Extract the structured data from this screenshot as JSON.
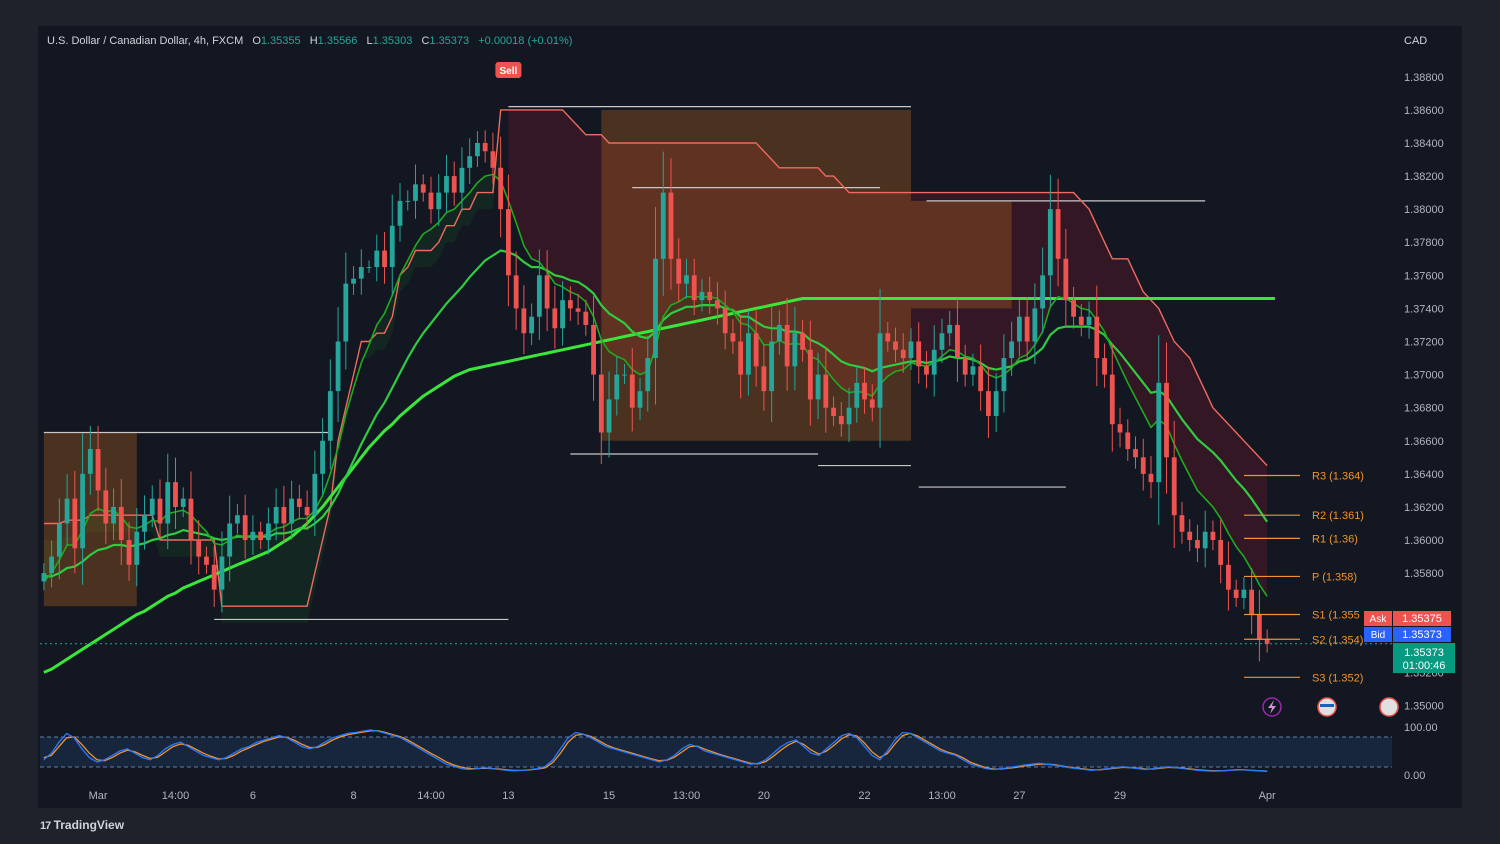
{
  "header": {
    "symbol": "U.S. Dollar / Canadian Dollar, 4h, FXCM",
    "open_label": "O",
    "open": "1.35355",
    "high_label": "H",
    "high": "1.35566",
    "low_label": "L",
    "low": "1.35303",
    "close_label": "C",
    "close": "1.35373",
    "change": "+0.00018 (+0.01%)"
  },
  "branding": {
    "logo_text": "TradingView"
  },
  "chart_data": {
    "type": "candlestick",
    "currency": "CAD",
    "ylim": [
      1.349,
      1.3895
    ],
    "y_ticks": [
      "1.38800",
      "1.38600",
      "1.38400",
      "1.38200",
      "1.38000",
      "1.37800",
      "1.37600",
      "1.37400",
      "1.37200",
      "1.37000",
      "1.36800",
      "1.36600",
      "1.36400",
      "1.36200",
      "1.36000",
      "1.35800",
      "1.35200",
      "1.35000"
    ],
    "x_ticks": [
      {
        "label": "Mar",
        "i": 7
      },
      {
        "label": "14:00",
        "i": 17
      },
      {
        "label": "6",
        "i": 27
      },
      {
        "label": "8",
        "i": 40
      },
      {
        "label": "14:00",
        "i": 50
      },
      {
        "label": "13",
        "i": 60
      },
      {
        "label": "15",
        "i": 73
      },
      {
        "label": "13:00",
        "i": 83
      },
      {
        "label": "20",
        "i": 93
      },
      {
        "label": "22",
        "i": 106
      },
      {
        "label": "13:00",
        "i": 116
      },
      {
        "label": "27",
        "i": 126
      },
      {
        "label": "29",
        "i": 139
      },
      {
        "label": "Apr",
        "i": 158
      }
    ],
    "closes": [
      1.358,
      1.359,
      1.361,
      1.3625,
      1.3595,
      1.364,
      1.3655,
      1.363,
      1.361,
      1.362,
      1.36,
      1.3585,
      1.3605,
      1.3615,
      1.3625,
      1.361,
      1.3635,
      1.362,
      1.3625,
      1.36,
      1.359,
      1.3585,
      1.357,
      1.359,
      1.361,
      1.3615,
      1.36,
      1.3605,
      1.36,
      1.361,
      1.362,
      1.361,
      1.3625,
      1.362,
      1.3615,
      1.364,
      1.366,
      1.369,
      1.372,
      1.3755,
      1.3758,
      1.3765,
      1.3765,
      1.3775,
      1.3765,
      1.379,
      1.3805,
      1.3805,
      1.3815,
      1.381,
      1.38,
      1.381,
      1.382,
      1.381,
      1.3825,
      1.3832,
      1.384,
      1.3835,
      1.3825,
      1.38,
      1.376,
      1.374,
      1.3725,
      1.3735,
      1.376,
      1.374,
      1.3728,
      1.3745,
      1.374,
      1.3738,
      1.373,
      1.37,
      1.3665,
      1.3685,
      1.37,
      1.37,
      1.368,
      1.369,
      1.371,
      1.377,
      1.381,
      1.377,
      1.3755,
      1.376,
      1.3745,
      1.375,
      1.3745,
      1.374,
      1.3725,
      1.372,
      1.37,
      1.3725,
      1.3705,
      1.369,
      1.372,
      1.373,
      1.3705,
      1.3725,
      1.3715,
      1.3685,
      1.37,
      1.368,
      1.3675,
      1.367,
      1.368,
      1.3695,
      1.3685,
      1.368,
      1.3725,
      1.372,
      1.3715,
      1.371,
      1.372,
      1.3705,
      1.37,
      1.3715,
      1.3725,
      1.373,
      1.371,
      1.37,
      1.3705,
      1.369,
      1.3675,
      1.369,
      1.371,
      1.372,
      1.3735,
      1.372,
      1.374,
      1.376,
      1.38,
      1.377,
      1.3745,
      1.3735,
      1.373,
      1.3735,
      1.371,
      1.37,
      1.367,
      1.3665,
      1.3655,
      1.365,
      1.364,
      1.3635,
      1.3695,
      1.365,
      1.3615,
      1.3605,
      1.36,
      1.3595,
      1.3605,
      1.36,
      1.3585,
      1.357,
      1.3565,
      1.357,
      1.3555,
      1.354,
      1.35373
    ],
    "candles_start_open": 1.3575,
    "ema_fast": [
      1.3575,
      1.358,
      1.3588,
      1.3597,
      1.3597,
      1.3606,
      1.3616,
      1.3619,
      1.3617,
      1.3618,
      1.3614,
      1.3608,
      1.3607,
      1.3609,
      1.3612,
      1.3611,
      1.3616,
      1.3617,
      1.3618,
      1.3615,
      1.361,
      1.3605,
      1.3598,
      1.3597,
      1.36,
      1.3603,
      1.3602,
      1.3603,
      1.3602,
      1.3604,
      1.3607,
      1.3608,
      1.3611,
      1.3613,
      1.3613,
      1.3618,
      1.3627,
      1.364,
      1.3656,
      1.3676,
      1.3692,
      1.3707,
      1.3718,
      1.373,
      1.3737,
      1.3748,
      1.376,
      1.3769,
      1.3778,
      1.3785,
      1.3788,
      1.3792,
      1.3798,
      1.38,
      1.3805,
      1.381,
      1.3816,
      1.382,
      1.3821,
      1.3817,
      1.3805,
      1.3792,
      1.3778,
      1.377,
      1.3768,
      1.3762,
      1.3755,
      1.3753,
      1.375,
      1.3748,
      1.3744,
      1.3735,
      1.3721,
      1.3714,
      1.3711,
      1.3709,
      1.3703,
      1.37,
      1.3702,
      1.3716,
      1.3735,
      1.3742,
      1.3744,
      1.3747,
      1.3747,
      1.3747,
      1.3747,
      1.3746,
      1.3742,
      1.3738,
      1.3731,
      1.373,
      1.3725,
      1.3718,
      1.3718,
      1.3721,
      1.3718,
      1.3719,
      1.3718,
      1.3711,
      1.3709,
      1.3703,
      1.3697,
      1.3692,
      1.3689,
      1.369,
      1.3689,
      1.3687,
      1.3694,
      1.3699,
      1.3702,
      1.3703,
      1.3707,
      1.3706,
      1.3705,
      1.3707,
      1.3711,
      1.3715,
      1.3714,
      1.3711,
      1.371,
      1.3706,
      1.37,
      1.3698,
      1.37,
      1.3704,
      1.371,
      1.3712,
      1.3718,
      1.3726,
      1.3741,
      1.3747,
      1.3746,
      1.3743,
      1.374,
      1.3739,
      1.3733,
      1.3726,
      1.3715,
      1.3705,
      1.3695,
      1.3686,
      1.3677,
      1.3668,
      1.3673,
      1.3669,
      1.3658,
      1.3648,
      1.3639,
      1.363,
      1.3625,
      1.362,
      1.3613,
      1.3604,
      1.3596,
      1.359,
      1.3582,
      1.3573,
      1.3566
    ],
    "ema_mid": [
      1.3578,
      1.3578,
      1.358,
      1.3583,
      1.3584,
      1.3587,
      1.3591,
      1.3594,
      1.3595,
      1.3597,
      1.3597,
      1.3596,
      1.3597,
      1.3598,
      1.36,
      1.3601,
      1.3603,
      1.3604,
      1.3606,
      1.3605,
      1.3604,
      1.3603,
      1.3601,
      1.36,
      1.3601,
      1.3602,
      1.3602,
      1.3602,
      1.3602,
      1.3602,
      1.3604,
      1.3604,
      1.3605,
      1.3607,
      1.3607,
      1.361,
      1.3614,
      1.362,
      1.3628,
      1.3638,
      1.3648,
      1.3658,
      1.3667,
      1.3676,
      1.3683,
      1.3692,
      1.3701,
      1.371,
      1.3718,
      1.3725,
      1.3731,
      1.3737,
      1.3743,
      1.3748,
      1.3753,
      1.3759,
      1.3764,
      1.3769,
      1.3772,
      1.3775,
      1.3774,
      1.3772,
      1.3768,
      1.3765,
      1.3765,
      1.3763,
      1.376,
      1.3759,
      1.3757,
      1.3756,
      1.3753,
      1.3749,
      1.3742,
      1.3737,
      1.3734,
      1.3731,
      1.3726,
      1.3723,
      1.3722,
      1.3726,
      1.3733,
      1.3737,
      1.3739,
      1.3741,
      1.3741,
      1.3742,
      1.3742,
      1.3742,
      1.374,
      1.3739,
      1.3735,
      1.3735,
      1.3732,
      1.3729,
      1.3728,
      1.3728,
      1.3726,
      1.3726,
      1.3725,
      1.3721,
      1.3719,
      1.3716,
      1.3712,
      1.3708,
      1.3706,
      1.3705,
      1.3704,
      1.3702,
      1.3704,
      1.3705,
      1.3706,
      1.3707,
      1.3708,
      1.3708,
      1.3707,
      1.3708,
      1.3709,
      1.3711,
      1.371,
      1.371,
      1.3709,
      1.3707,
      1.3704,
      1.3703,
      1.3704,
      1.3705,
      1.3708,
      1.3709,
      1.3712,
      1.3716,
      1.3724,
      1.3728,
      1.3729,
      1.3729,
      1.3729,
      1.3729,
      1.3727,
      1.3724,
      1.3718,
      1.3713,
      1.3707,
      1.3701,
      1.3695,
      1.3689,
      1.369,
      1.3687,
      1.368,
      1.3673,
      1.3667,
      1.3661,
      1.3657,
      1.3653,
      1.3648,
      1.3642,
      1.3636,
      1.3631,
      1.3625,
      1.3618,
      1.3611
    ],
    "ema_slow": [
      1.352,
      1.3522,
      1.3525,
      1.3528,
      1.3531,
      1.3534,
      1.3537,
      1.354,
      1.3543,
      1.3546,
      1.3549,
      1.3552,
      1.3555,
      1.3557,
      1.356,
      1.3563,
      1.3566,
      1.3568,
      1.3571,
      1.3573,
      1.3575,
      1.3577,
      1.3579,
      1.3581,
      1.3583,
      1.3585,
      1.3587,
      1.3589,
      1.3591,
      1.3593,
      1.3596,
      1.3599,
      1.3602,
      1.3606,
      1.361,
      1.3615,
      1.362,
      1.3626,
      1.3632,
      1.3638,
      1.3644,
      1.365,
      1.3656,
      1.3661,
      1.3666,
      1.367,
      1.3675,
      1.3679,
      1.3683,
      1.3687,
      1.369,
      1.3693,
      1.3696,
      1.3699,
      1.3701,
      1.3703,
      1.3704,
      1.3705,
      1.3706,
      1.3707,
      1.3708,
      1.3709,
      1.371,
      1.3711,
      1.3712,
      1.3713,
      1.3714,
      1.3715,
      1.3716,
      1.3717,
      1.3718,
      1.3719,
      1.372,
      1.3721,
      1.3722,
      1.3723,
      1.3724,
      1.3725,
      1.3726,
      1.3727,
      1.3728,
      1.3729,
      1.373,
      1.3731,
      1.3732,
      1.3733,
      1.3734,
      1.3735,
      1.3736,
      1.3737,
      1.3738,
      1.3739,
      1.374,
      1.3741,
      1.3742,
      1.3743,
      1.3744,
      1.3745,
      1.3746,
      1.3746,
      1.3746,
      1.3746,
      1.3746,
      1.3746,
      1.3746,
      1.3746,
      1.3746,
      1.3746,
      1.3746,
      1.3746,
      1.3746,
      1.3746,
      1.3746,
      1.3746,
      1.3746,
      1.3746,
      1.3746,
      1.3746,
      1.3746,
      1.3746,
      1.3746,
      1.3746,
      1.3746,
      1.3746,
      1.3746,
      1.3746,
      1.3746,
      1.3746,
      1.3746,
      1.3746,
      1.3746,
      1.3746,
      1.3746,
      1.3746,
      1.3746,
      1.3746,
      1.3746,
      1.3746,
      1.3746,
      1.3746,
      1.3746,
      1.3746,
      1.3746,
      1.3746,
      1.3746,
      1.3746,
      1.3746,
      1.3746,
      1.3746,
      1.3746,
      1.3746,
      1.3746,
      1.3746,
      1.3746,
      1.3746,
      1.3746,
      1.3746,
      1.3746,
      1.3746,
      1.3746
    ],
    "trailing_stop": [
      1.361,
      1.361,
      1.361,
      1.3612,
      1.3612,
      1.3612,
      1.3615,
      1.3615,
      1.3615,
      1.3615,
      1.3615,
      1.3615,
      1.3615,
      1.3615,
      1.3615,
      1.36,
      1.36,
      1.36,
      1.36,
      1.36,
      1.36,
      1.36,
      1.36,
      1.356,
      1.356,
      1.356,
      1.356,
      1.356,
      1.356,
      1.356,
      1.356,
      1.356,
      1.356,
      1.356,
      1.356,
      1.358,
      1.36,
      1.362,
      1.366,
      1.368,
      1.37,
      1.372,
      1.372,
      1.3725,
      1.3725,
      1.3735,
      1.376,
      1.3765,
      1.3775,
      1.3775,
      1.3775,
      1.378,
      1.379,
      1.379,
      1.38,
      1.38,
      1.381,
      1.381,
      1.381,
      1.386,
      1.386,
      1.386,
      1.386,
      1.386,
      1.386,
      1.386,
      1.386,
      1.386,
      1.3855,
      1.385,
      1.3845,
      1.3845,
      1.3845,
      1.384,
      1.384,
      1.384,
      1.384,
      1.384,
      1.384,
      1.384,
      1.384,
      1.384,
      1.384,
      1.384,
      1.384,
      1.384,
      1.384,
      1.384,
      1.384,
      1.384,
      1.384,
      1.384,
      1.384,
      1.3835,
      1.383,
      1.3825,
      1.3825,
      1.3825,
      1.3825,
      1.3825,
      1.3825,
      1.382,
      1.382,
      1.3815,
      1.381,
      1.381,
      1.381,
      1.381,
      1.381,
      1.381,
      1.381,
      1.381,
      1.381,
      1.381,
      1.381,
      1.381,
      1.381,
      1.381,
      1.381,
      1.381,
      1.381,
      1.381,
      1.381,
      1.381,
      1.381,
      1.381,
      1.381,
      1.381,
      1.381,
      1.381,
      1.381,
      1.381,
      1.381,
      1.381,
      1.3805,
      1.38,
      1.379,
      1.378,
      1.377,
      1.377,
      1.377,
      1.376,
      1.375,
      1.3745,
      1.374,
      1.373,
      1.372,
      1.3715,
      1.371,
      1.37,
      1.369,
      1.368,
      1.3675,
      1.367,
      1.3665,
      1.366,
      1.3655,
      1.365,
      1.3645
    ],
    "pivots": [
      {
        "label": "R3 (1.364)",
        "value": 1.3639
      },
      {
        "label": "R2 (1.361)",
        "value": 1.3615
      },
      {
        "label": "R1 (1.36)",
        "value": 1.3601
      },
      {
        "label": "P (1.358)",
        "value": 1.3578
      },
      {
        "label": "S1 (1.355",
        "value": 1.3555
      },
      {
        "label": "S2 (1.354)",
        "value": 1.354
      },
      {
        "label": "S3 (1.352)",
        "value": 1.3517
      }
    ],
    "annotations": [
      {
        "label": "Sell",
        "i": 60
      }
    ],
    "badges": {
      "ask_label": "Ask",
      "ask": "1.35375",
      "bid_label": "Bid",
      "bid": "1.35373",
      "last": "1.35373",
      "countdown": "01:00:46"
    },
    "oscillator": {
      "ticks": [
        "100.00",
        "0.00"
      ],
      "k": [
        30,
        45,
        70,
        90,
        80,
        55,
        35,
        25,
        30,
        40,
        50,
        55,
        45,
        35,
        30,
        40,
        55,
        65,
        70,
        60,
        50,
        40,
        35,
        30,
        35,
        45,
        55,
        60,
        70,
        75,
        80,
        85,
        80,
        70,
        60,
        55,
        60,
        70,
        80,
        85,
        90,
        92,
        95,
        98,
        95,
        90,
        85,
        80,
        70,
        60,
        50,
        40,
        30,
        20,
        15,
        10,
        8,
        10,
        12,
        10,
        8,
        6,
        5,
        6,
        8,
        10,
        15,
        30,
        55,
        80,
        92,
        88,
        80,
        70,
        60,
        55,
        50,
        45,
        40,
        35,
        30,
        25,
        30,
        40,
        55,
        65,
        60,
        50,
        45,
        40,
        35,
        30,
        25,
        20,
        22,
        30,
        45,
        60,
        70,
        75,
        60,
        45,
        40,
        55,
        70,
        85,
        90,
        80,
        60,
        40,
        30,
        50,
        75,
        92,
        90,
        80,
        70,
        60,
        50,
        45,
        40,
        30,
        20,
        15,
        10,
        8,
        10,
        12,
        15,
        18,
        20,
        22,
        20,
        18,
        15,
        12,
        10,
        8,
        6,
        8,
        10,
        12,
        14,
        12,
        10,
        8,
        10,
        12,
        14,
        12,
        10,
        8,
        6,
        5,
        4,
        5,
        6,
        8,
        7,
        6,
        5,
        4
      ],
      "d": [
        35,
        40,
        60,
        80,
        82,
        65,
        45,
        30,
        28,
        35,
        45,
        52,
        48,
        40,
        33,
        36,
        48,
        60,
        66,
        63,
        54,
        45,
        38,
        32,
        33,
        40,
        50,
        57,
        65,
        72,
        77,
        82,
        81,
        74,
        65,
        58,
        58,
        65,
        75,
        82,
        87,
        90,
        93,
        96,
        96,
        92,
        87,
        82,
        74,
        64,
        54,
        44,
        35,
        25,
        18,
        13,
        10,
        10,
        11,
        10,
        9,
        7,
        6,
        6,
        7,
        9,
        12,
        24,
        45,
        70,
        86,
        88,
        83,
        74,
        64,
        57,
        52,
        47,
        42,
        37,
        32,
        28,
        29,
        36,
        48,
        60,
        61,
        54,
        48,
        42,
        37,
        32,
        27,
        22,
        21,
        26,
        38,
        52,
        64,
        72,
        65,
        52,
        43,
        50,
        63,
        78,
        87,
        84,
        68,
        48,
        35,
        44,
        66,
        85,
        90,
        84,
        74,
        64,
        54,
        47,
        42,
        34,
        24,
        18,
        12,
        9,
        9,
        11,
        13,
        16,
        18,
        20,
        20,
        19,
        16,
        13,
        11,
        9,
        7,
        7,
        9,
        11,
        13,
        12,
        11,
        9,
        9,
        11,
        13,
        12,
        11,
        9,
        7,
        6,
        5,
        5,
        6,
        7,
        7,
        6,
        5,
        4
      ]
    }
  }
}
